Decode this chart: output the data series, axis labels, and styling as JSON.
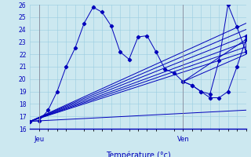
{
  "background_color": "#cce8f0",
  "grid_color": "#99cce0",
  "line_color": "#0000bb",
  "yticks": [
    16,
    17,
    18,
    19,
    20,
    21,
    22,
    23,
    24,
    25,
    26
  ],
  "ymin": 16,
  "ymax": 26,
  "xmin": 0,
  "xmax": 24,
  "jeu_x": 1,
  "ven_x": 17,
  "xlabel": "Température (°c)",
  "day_labels": [
    [
      "Jeu",
      1
    ],
    [
      "Ven",
      17
    ]
  ],
  "main_line": [
    0,
    16.6,
    1,
    16.65,
    2,
    17.5,
    3,
    19.0,
    4,
    21.0,
    5,
    22.5,
    6,
    24.5,
    7,
    25.8,
    8,
    25.4,
    9,
    24.3,
    10,
    22.2,
    11,
    21.6,
    12,
    23.4,
    13,
    23.5,
    14,
    22.2,
    15,
    20.8,
    16,
    20.5,
    17,
    19.8,
    18,
    19.5,
    19,
    19.0,
    20,
    18.5,
    21,
    18.5,
    22,
    19.0,
    23,
    21.0,
    24,
    23.2
  ],
  "fan_lines": [
    [
      0,
      16.6,
      24,
      22.2
    ],
    [
      0,
      16.6,
      24,
      22.6
    ],
    [
      0,
      16.6,
      24,
      23.0
    ],
    [
      0,
      16.6,
      24,
      23.5
    ],
    [
      0,
      16.6,
      24,
      24.0
    ],
    [
      0,
      16.6,
      24,
      24.5
    ],
    [
      0,
      16.6,
      24,
      17.5
    ]
  ],
  "spike_line": [
    17,
    19.8,
    18,
    19.5,
    19,
    19.0,
    20,
    18.8,
    21,
    21.5,
    22,
    26.0,
    23,
    24.2,
    24,
    22.2,
    24,
    23.5
  ],
  "extra_lines": [
    [
      17,
      19.8,
      24,
      22.0
    ],
    [
      17,
      19.8,
      24,
      23.2
    ]
  ]
}
